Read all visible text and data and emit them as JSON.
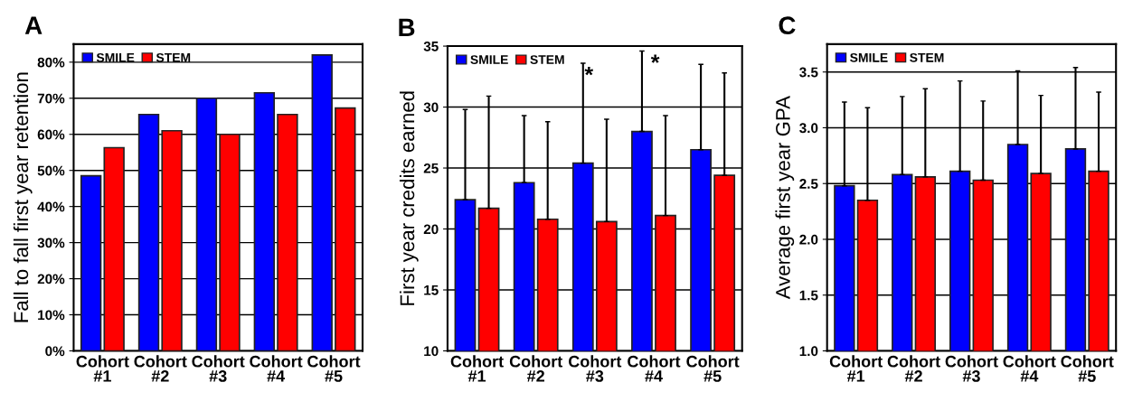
{
  "chart_data": [
    {
      "type": "bar",
      "title": "A",
      "ylabel": "Fall to fall first year retention",
      "categories": [
        "Cohort\n#1",
        "Cohort\n#2",
        "Cohort\n#3",
        "Cohort\n#4",
        "Cohort\n#5"
      ],
      "series": [
        {
          "name": "SMILE",
          "color": "#0000ff",
          "values": [
            48.5,
            65.5,
            70,
            71.5,
            82
          ]
        },
        {
          "name": "STEM",
          "color": "#ff0000",
          "values": [
            56.3,
            61,
            60,
            65.5,
            67.3
          ]
        }
      ],
      "ylim": [
        0,
        85
      ],
      "yticks": [
        {
          "value": 0,
          "label": "0%"
        },
        {
          "value": 10,
          "label": "10%"
        },
        {
          "value": 20,
          "label": "20%"
        },
        {
          "value": 30,
          "label": "30%"
        },
        {
          "value": 40,
          "label": "40%"
        },
        {
          "value": 50,
          "label": "50%"
        },
        {
          "value": 60,
          "label": "60%"
        },
        {
          "value": 70,
          "label": "70%"
        },
        {
          "value": 80,
          "label": "80%"
        }
      ],
      "grid": "y",
      "legend": "top left"
    },
    {
      "type": "bar",
      "title": "B",
      "ylabel": "First year credits earned",
      "categories": [
        "Cohort\n#1",
        "Cohort\n#2",
        "Cohort\n#3",
        "Cohort\n#4",
        "Cohort\n#5"
      ],
      "series": [
        {
          "name": "SMILE",
          "color": "#0000ff",
          "values": [
            22.4,
            23.8,
            25.4,
            28.0,
            26.5
          ],
          "errors": [
            [
              22.4,
              29.8
            ],
            [
              23.8,
              29.3
            ],
            [
              25.4,
              33.6
            ],
            [
              28.0,
              34.6
            ],
            [
              26.5,
              33.5
            ]
          ]
        },
        {
          "name": "STEM",
          "color": "#ff0000",
          "values": [
            21.7,
            20.8,
            20.6,
            21.1,
            24.4
          ],
          "errors": [
            [
              21.7,
              30.9
            ],
            [
              20.8,
              28.8
            ],
            [
              20.6,
              29.0
            ],
            [
              21.1,
              29.3
            ],
            [
              24.4,
              32.8
            ]
          ]
        }
      ],
      "ylim": [
        10,
        35
      ],
      "yticks": [
        10,
        15,
        20,
        25,
        30,
        35
      ],
      "annotations": [
        "*",
        "*"
      ],
      "grid": "y",
      "legend": "top left"
    },
    {
      "type": "bar",
      "title": "C",
      "ylabel": "Average first year GPA",
      "categories": [
        "Cohort\n#1",
        "Cohort\n#2",
        "Cohort\n#3",
        "Cohort\n#4",
        "Cohort\n#5"
      ],
      "series": [
        {
          "name": "SMILE",
          "color": "#0000ff",
          "values": [
            2.48,
            2.58,
            2.61,
            2.85,
            2.81
          ],
          "errors": [
            [
              2.48,
              3.23
            ],
            [
              2.58,
              3.28
            ],
            [
              2.61,
              3.42
            ],
            [
              2.85,
              3.51
            ],
            [
              2.81,
              3.54
            ]
          ]
        },
        {
          "name": "STEM",
          "color": "#ff0000",
          "values": [
            2.35,
            2.56,
            2.53,
            2.59,
            2.61
          ],
          "errors": [
            [
              2.35,
              3.18
            ],
            [
              2.56,
              3.35
            ],
            [
              2.53,
              3.24
            ],
            [
              2.59,
              3.29
            ],
            [
              2.61,
              3.32
            ]
          ]
        }
      ],
      "ylim": [
        1.0,
        3.75
      ],
      "yticks": [
        {
          "value": 1.0,
          "label": "1.0"
        },
        {
          "value": 1.5,
          "label": "1.5"
        },
        {
          "value": 2.0,
          "label": "2.0"
        },
        {
          "value": 2.5,
          "label": "2.5"
        },
        {
          "value": 3.0,
          "label": "3.0"
        },
        {
          "value": 3.5,
          "label": "3.5"
        }
      ],
      "grid": "y",
      "legend": "top left"
    }
  ]
}
